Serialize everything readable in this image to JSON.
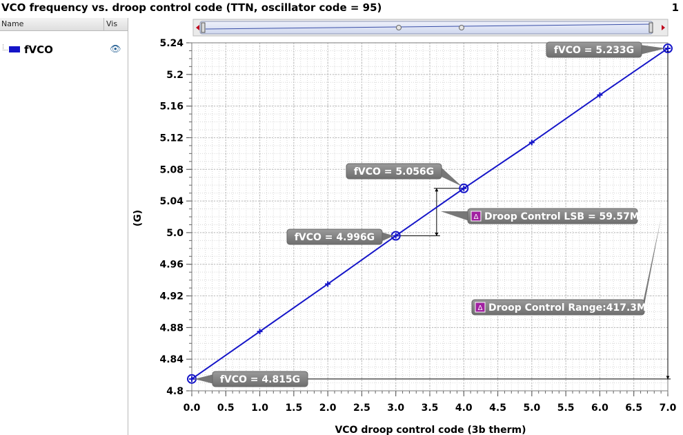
{
  "title": "VCO frequency vs. droop control code (TTN, oscillator code = 95)",
  "page_number": "1",
  "legend_panel": {
    "col_name": "Name",
    "col_vis": "Vis",
    "items": [
      {
        "name": "fVCO",
        "color": "#1515c8",
        "icon": "eye-icon"
      }
    ]
  },
  "chart_data": {
    "type": "line",
    "xlabel": "VCO droop control code (3b therm)",
    "ylabel": "(G)",
    "xlim": [
      0,
      7
    ],
    "ylim": [
      4.8,
      5.24
    ],
    "x_ticks": [
      "0.0",
      "0.5",
      "1.0",
      "1.5",
      "2.0",
      "2.5",
      "3.0",
      "3.5",
      "4.0",
      "4.5",
      "5.0",
      "5.5",
      "6.0",
      "6.5",
      "7.0"
    ],
    "y_ticks": [
      "4.8",
      "4.84",
      "4.88",
      "4.92",
      "4.96",
      "5.0",
      "5.04",
      "5.08",
      "5.12",
      "5.16",
      "5.2",
      "5.24"
    ],
    "grid": true,
    "series": [
      {
        "name": "fVCO",
        "color": "#1515c8",
        "x": [
          0,
          1,
          2,
          3,
          4,
          5,
          6,
          7
        ],
        "y": [
          4.815,
          4.875,
          4.935,
          4.996,
          5.056,
          5.114,
          5.174,
          5.233
        ]
      }
    ],
    "markers": [
      {
        "x": 0,
        "y": 4.815,
        "label": "fVCO = 4.815G"
      },
      {
        "x": 3,
        "y": 4.996,
        "label": "fVCO = 4.996G"
      },
      {
        "x": 4,
        "y": 5.056,
        "label": "fVCO = 5.056G"
      },
      {
        "x": 7,
        "y": 5.233,
        "label": "fVCO = 5.233G"
      }
    ],
    "deltas": [
      {
        "from_x": 3,
        "to_x": 4,
        "label": "Droop Control LSB = 59.57M",
        "icon": "delta-icon"
      },
      {
        "from_x": 0,
        "to_x": 7,
        "label": "Droop Control Range:417.3M",
        "icon": "delta-icon"
      }
    ]
  }
}
